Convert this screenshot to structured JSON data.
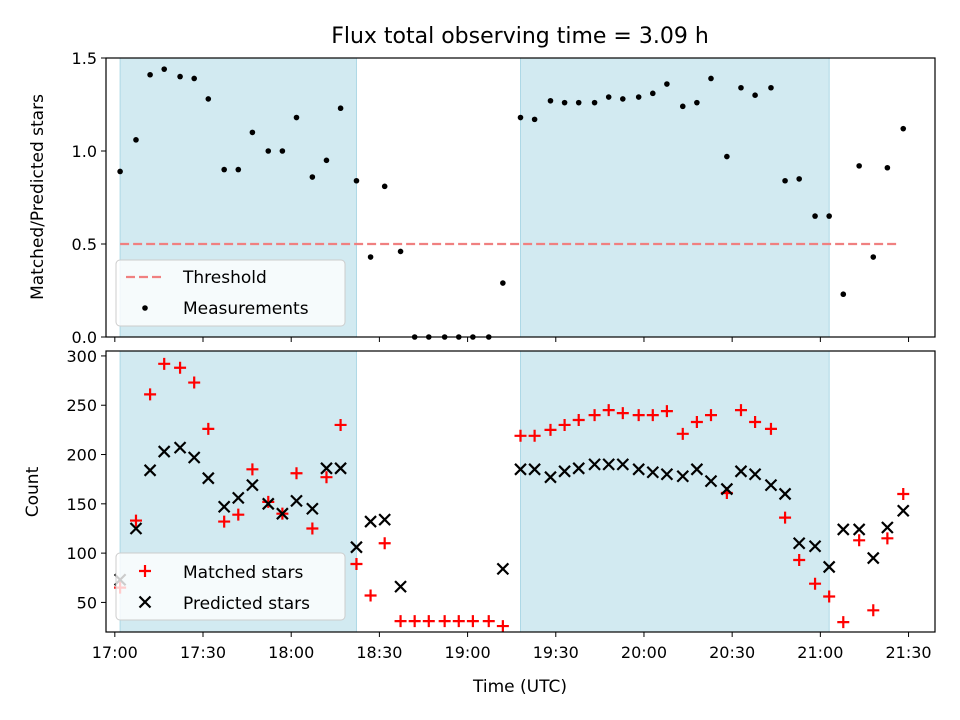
{
  "title": "Flux total observing time = 3.09 h",
  "colors": {
    "shade": "#add8e6",
    "threshold": "#f08080",
    "measurement": "#000000",
    "matched": "#ff0000",
    "predicted": "#000000"
  },
  "chart_data": [
    {
      "type": "scatter",
      "id": "ratio",
      "ylabel": "Matched/Predicted stars",
      "xlim": [
        16.95,
        21.65
      ],
      "ylim": [
        0,
        1.5
      ],
      "yticks": [
        0,
        0.5,
        1.0,
        1.5
      ],
      "ytick_labels": [
        "0.0",
        "0.5",
        "1.0",
        "1.5"
      ],
      "shaded_intervals": [
        [
          17.03,
          18.37
        ],
        [
          19.3,
          21.05
        ]
      ],
      "threshold": {
        "label": "Threshold",
        "value": 0.5,
        "x_range": [
          17.03,
          21.45
        ]
      },
      "series": [
        {
          "name": "Measurements",
          "x": [
            17.03,
            17.12,
            17.2,
            17.28,
            17.37,
            17.45,
            17.53,
            17.62,
            17.7,
            17.78,
            17.87,
            17.95,
            18.03,
            18.12,
            18.2,
            18.28,
            18.37,
            18.45,
            18.53,
            18.62,
            18.7,
            18.78,
            18.87,
            18.95,
            19.03,
            19.12,
            19.2,
            19.3,
            19.38,
            19.47,
            19.55,
            19.63,
            19.72,
            19.8,
            19.88,
            19.97,
            20.05,
            20.13,
            20.22,
            20.3,
            20.38,
            20.47,
            20.55,
            20.63,
            20.72,
            20.8,
            20.88,
            20.97,
            21.05,
            21.13,
            21.22,
            21.3,
            21.38,
            21.47
          ],
          "y": [
            0.89,
            1.06,
            1.41,
            1.44,
            1.4,
            1.39,
            1.28,
            0.9,
            0.9,
            1.1,
            1.0,
            1.0,
            1.18,
            0.86,
            0.95,
            1.23,
            0.84,
            0.43,
            0.81,
            0.46,
            0.0,
            0.0,
            0.0,
            0.0,
            0.0,
            0.0,
            0.29,
            1.18,
            1.17,
            1.27,
            1.26,
            1.26,
            1.26,
            1.29,
            1.28,
            1.29,
            1.31,
            1.36,
            1.24,
            1.26,
            1.39,
            0.97,
            1.34,
            1.3,
            1.34,
            0.84,
            0.85,
            0.65,
            0.65,
            0.23,
            0.92,
            0.43,
            0.91,
            1.12
          ]
        }
      ],
      "legend": [
        "Threshold",
        "Measurements"
      ],
      "legend_position": "lower-left"
    },
    {
      "type": "scatter",
      "id": "counts",
      "xlabel": "Time (UTC)",
      "ylabel": "Count",
      "xlim": [
        16.95,
        21.65
      ],
      "ylim": [
        20,
        305
      ],
      "yticks": [
        50,
        100,
        150,
        200,
        250,
        300
      ],
      "ytick_labels": [
        "50",
        "100",
        "150",
        "200",
        "250",
        "300"
      ],
      "xticks": [
        17.0,
        17.5,
        18.0,
        18.5,
        19.0,
        19.5,
        20.0,
        20.5,
        21.0,
        21.5
      ],
      "xtick_labels": [
        "17:00",
        "17:30",
        "18:00",
        "18:30",
        "19:00",
        "19:30",
        "20:00",
        "20:30",
        "21:00",
        "21:30"
      ],
      "shaded_intervals": [
        [
          17.03,
          18.37
        ],
        [
          19.3,
          21.05
        ]
      ],
      "series": [
        {
          "name": "Matched stars",
          "marker": "+",
          "x": [
            17.03,
            17.12,
            17.2,
            17.28,
            17.37,
            17.45,
            17.53,
            17.62,
            17.7,
            17.78,
            17.87,
            17.95,
            18.03,
            18.12,
            18.2,
            18.28,
            18.37,
            18.45,
            18.53,
            18.62,
            18.7,
            18.78,
            18.87,
            18.95,
            19.03,
            19.12,
            19.2,
            19.3,
            19.38,
            19.47,
            19.55,
            19.63,
            19.72,
            19.8,
            19.88,
            19.97,
            20.05,
            20.13,
            20.22,
            20.3,
            20.38,
            20.47,
            20.55,
            20.63,
            20.72,
            20.8,
            20.88,
            20.97,
            21.05,
            21.13,
            21.22,
            21.3,
            21.38,
            21.47
          ],
          "y": [
            65,
            133,
            261,
            292,
            288,
            273,
            226,
            132,
            139,
            185,
            152,
            140,
            181,
            125,
            177,
            230,
            89,
            57,
            110,
            31,
            31,
            31,
            31,
            31,
            31,
            31,
            26,
            219,
            219,
            225,
            230,
            235,
            240,
            245,
            242,
            240,
            240,
            244,
            221,
            233,
            240,
            161,
            245,
            233,
            226,
            136,
            93,
            69,
            56,
            30,
            113,
            42,
            115,
            160
          ]
        },
        {
          "name": "Predicted stars",
          "marker": "x",
          "x": [
            17.03,
            17.12,
            17.2,
            17.28,
            17.37,
            17.45,
            17.53,
            17.62,
            17.7,
            17.78,
            17.87,
            17.95,
            18.03,
            18.12,
            18.2,
            18.28,
            18.37,
            18.45,
            18.53,
            18.62,
            18.7,
            18.78,
            18.87,
            18.95,
            19.03,
            19.12,
            19.2,
            19.3,
            19.38,
            19.47,
            19.55,
            19.63,
            19.72,
            19.8,
            19.88,
            19.97,
            20.05,
            20.13,
            20.22,
            20.3,
            20.38,
            20.47,
            20.55,
            20.63,
            20.72,
            20.8,
            20.88,
            20.97,
            21.05,
            21.13,
            21.22,
            21.3,
            21.38,
            21.47
          ],
          "y": [
            73,
            125,
            184,
            203,
            207,
            197,
            176,
            147,
            156,
            169,
            150,
            140,
            153,
            145,
            186,
            186,
            106,
            132,
            134,
            66,
            null,
            null,
            null,
            null,
            null,
            null,
            84,
            185,
            185,
            177,
            183,
            186,
            190,
            190,
            190,
            185,
            182,
            180,
            178,
            185,
            173,
            165,
            183,
            180,
            169,
            160,
            110,
            107,
            86,
            124,
            124,
            95,
            126,
            143
          ]
        }
      ],
      "legend": [
        "Matched stars",
        "Predicted stars"
      ],
      "legend_position": "lower-left"
    }
  ]
}
